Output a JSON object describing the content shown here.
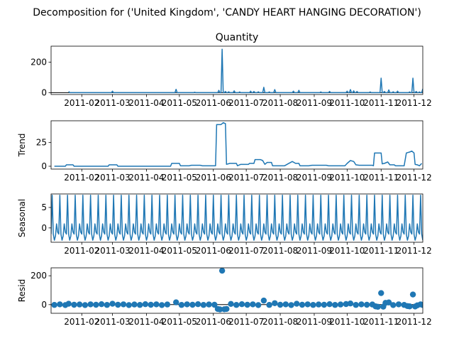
{
  "figure": {
    "suptitle": "Decomposition for ('United Kingdom', 'CANDY HEART HANGING DECORATION')"
  },
  "colors": {
    "line": "#1f77b4",
    "axis": "#000000",
    "background": "#ffffff"
  },
  "chart_data": [
    {
      "type": "line",
      "title": "Quantity",
      "ylabel": "",
      "xlim": [
        "2011-01-04",
        "2011-12-09"
      ],
      "ylim": [
        -12,
        305
      ],
      "yticks": [
        0,
        200
      ],
      "xticks": [
        "2011-02",
        "2011-03",
        "2011-04",
        "2011-05",
        "2011-06",
        "2011-07",
        "2011-08",
        "2011-09",
        "2011-10",
        "2011-11",
        "2011-12"
      ],
      "baseline": 0,
      "series": [
        {
          "points": [
            [
              "2011-01-20",
              8
            ],
            [
              "2011-03-01",
              10
            ],
            [
              "2011-04-28",
              22
            ],
            [
              "2011-05-15",
              3
            ],
            [
              "2011-06-06",
              15
            ],
            [
              "2011-06-09",
              285
            ],
            [
              "2011-06-12",
              8
            ],
            [
              "2011-06-15",
              6
            ],
            [
              "2011-06-20",
              12
            ],
            [
              "2011-06-25",
              5
            ],
            [
              "2011-07-05",
              10
            ],
            [
              "2011-07-08",
              8
            ],
            [
              "2011-07-12",
              6
            ],
            [
              "2011-07-17",
              35
            ],
            [
              "2011-07-22",
              5
            ],
            [
              "2011-07-27",
              20
            ],
            [
              "2011-08-13",
              10
            ],
            [
              "2011-08-18",
              15
            ],
            [
              "2011-09-07",
              5
            ],
            [
              "2011-09-15",
              8
            ],
            [
              "2011-10-01",
              10
            ],
            [
              "2011-10-04",
              20
            ],
            [
              "2011-10-07",
              12
            ],
            [
              "2011-10-10",
              8
            ],
            [
              "2011-10-22",
              5
            ],
            [
              "2011-11-01",
              95
            ],
            [
              "2011-11-04",
              8
            ],
            [
              "2011-11-08",
              18
            ],
            [
              "2011-11-12",
              6
            ],
            [
              "2011-11-16",
              10
            ],
            [
              "2011-11-27",
              5
            ],
            [
              "2011-11-30",
              95
            ],
            [
              "2011-12-03",
              8
            ],
            [
              "2011-12-06",
              5
            ],
            [
              "2011-12-09",
              25
            ]
          ]
        }
      ]
    },
    {
      "type": "line",
      "title": "",
      "ylabel": "Trend",
      "xlim": [
        "2011-01-04",
        "2011-12-09"
      ],
      "ylim": [
        -3,
        48
      ],
      "yticks": [
        0,
        25
      ],
      "xticks": [
        "2011-02",
        "2011-03",
        "2011-04",
        "2011-05",
        "2011-06",
        "2011-07",
        "2011-08",
        "2011-09",
        "2011-10",
        "2011-11",
        "2011-12"
      ],
      "series": [
        {
          "points": [
            [
              "2011-01-07",
              0
            ],
            [
              "2011-01-17",
              0
            ],
            [
              "2011-01-18",
              1.5
            ],
            [
              "2011-01-24",
              1.5
            ],
            [
              "2011-01-25",
              0
            ],
            [
              "2011-02-25",
              0
            ],
            [
              "2011-02-26",
              1.5
            ],
            [
              "2011-03-05",
              1.5
            ],
            [
              "2011-03-06",
              0
            ],
            [
              "2011-04-23",
              0
            ],
            [
              "2011-04-24",
              3
            ],
            [
              "2011-05-01",
              3
            ],
            [
              "2011-05-02",
              0.5
            ],
            [
              "2011-05-10",
              0.5
            ],
            [
              "2011-05-12",
              1
            ],
            [
              "2011-05-20",
              1
            ],
            [
              "2011-05-22",
              0.5
            ],
            [
              "2011-06-03",
              0.5
            ],
            [
              "2011-06-04",
              44
            ],
            [
              "2011-06-08",
              44
            ],
            [
              "2011-06-10",
              46
            ],
            [
              "2011-06-12",
              45
            ],
            [
              "2011-06-13",
              2
            ],
            [
              "2011-06-16",
              3
            ],
            [
              "2011-06-22",
              3
            ],
            [
              "2011-06-23",
              0.5
            ],
            [
              "2011-06-26",
              2
            ],
            [
              "2011-07-03",
              2
            ],
            [
              "2011-07-04",
              3
            ],
            [
              "2011-07-08",
              3
            ],
            [
              "2011-07-09",
              7
            ],
            [
              "2011-07-14",
              7
            ],
            [
              "2011-07-16",
              6
            ],
            [
              "2011-07-18",
              2
            ],
            [
              "2011-07-20",
              4
            ],
            [
              "2011-07-24",
              4
            ],
            [
              "2011-07-25",
              0.5
            ],
            [
              "2011-08-05",
              0.5
            ],
            [
              "2011-08-08",
              2.5
            ],
            [
              "2011-08-12",
              5
            ],
            [
              "2011-08-15",
              3
            ],
            [
              "2011-08-18",
              3
            ],
            [
              "2011-08-19",
              0.5
            ],
            [
              "2011-08-27",
              0.5
            ],
            [
              "2011-08-30",
              1
            ],
            [
              "2011-09-12",
              1
            ],
            [
              "2011-09-14",
              0.5
            ],
            [
              "2011-09-29",
              0.5
            ],
            [
              "2011-10-01",
              3
            ],
            [
              "2011-10-04",
              6
            ],
            [
              "2011-10-07",
              5
            ],
            [
              "2011-10-09",
              1.5
            ],
            [
              "2011-10-12",
              1
            ],
            [
              "2011-10-24",
              1
            ],
            [
              "2011-10-25",
              0.5
            ],
            [
              "2011-10-26",
              14
            ],
            [
              "2011-11-01",
              14
            ],
            [
              "2011-11-02",
              2.5
            ],
            [
              "2011-11-04",
              3
            ],
            [
              "2011-11-07",
              4.5
            ],
            [
              "2011-11-09",
              1.5
            ],
            [
              "2011-11-13",
              1.5
            ],
            [
              "2011-11-14",
              0.5
            ],
            [
              "2011-11-22",
              0.5
            ],
            [
              "2011-11-24",
              14
            ],
            [
              "2011-11-27",
              15
            ],
            [
              "2011-11-29",
              16
            ],
            [
              "2011-12-01",
              14
            ],
            [
              "2011-12-02",
              2
            ],
            [
              "2011-12-04",
              1.5
            ],
            [
              "2011-12-06",
              0.5
            ],
            [
              "2011-12-08",
              3
            ]
          ]
        }
      ]
    },
    {
      "type": "line",
      "title": "",
      "ylabel": "Seasonal",
      "xlim": [
        "2011-01-04",
        "2011-12-09"
      ],
      "ylim": [
        -3.5,
        8.3
      ],
      "yticks": [
        0,
        5
      ],
      "xticks": [
        "2011-02",
        "2011-03",
        "2011-04",
        "2011-05",
        "2011-06",
        "2011-07",
        "2011-08",
        "2011-09",
        "2011-10",
        "2011-11",
        "2011-12"
      ],
      "seasonal_period_days": 7,
      "seasonal_cycle": [
        -1.5,
        8,
        -1.5,
        -3,
        -2,
        1,
        -1
      ],
      "start": "2011-01-04",
      "end": "2011-12-09"
    },
    {
      "type": "scatter",
      "title": "",
      "ylabel": "Resid",
      "xlim": [
        "2011-01-04",
        "2011-12-09"
      ],
      "ylim": [
        -60,
        255
      ],
      "yticks": [
        0,
        200
      ],
      "xticks": [
        "2011-02",
        "2011-03",
        "2011-04",
        "2011-05",
        "2011-06",
        "2011-07",
        "2011-08",
        "2011-09",
        "2011-10",
        "2011-11",
        "2011-12"
      ],
      "baseline": 0,
      "points": [
        [
          "2011-01-07",
          -2
        ],
        [
          "2011-01-12",
          2
        ],
        [
          "2011-01-17",
          -3
        ],
        [
          "2011-01-20",
          6
        ],
        [
          "2011-01-25",
          -1
        ],
        [
          "2011-01-30",
          1
        ],
        [
          "2011-02-04",
          -3
        ],
        [
          "2011-02-09",
          2
        ],
        [
          "2011-02-14",
          -1
        ],
        [
          "2011-02-19",
          3
        ],
        [
          "2011-02-24",
          -2
        ],
        [
          "2011-03-01",
          6
        ],
        [
          "2011-03-06",
          -1
        ],
        [
          "2011-03-11",
          2
        ],
        [
          "2011-03-16",
          -3
        ],
        [
          "2011-03-21",
          1
        ],
        [
          "2011-03-26",
          -2
        ],
        [
          "2011-03-31",
          3
        ],
        [
          "2011-04-05",
          -1
        ],
        [
          "2011-04-10",
          2
        ],
        [
          "2011-04-15",
          -3
        ],
        [
          "2011-04-20",
          1
        ],
        [
          "2011-04-28",
          16
        ],
        [
          "2011-05-03",
          -2
        ],
        [
          "2011-05-08",
          2
        ],
        [
          "2011-05-13",
          -1
        ],
        [
          "2011-05-18",
          3
        ],
        [
          "2011-05-23",
          -2
        ],
        [
          "2011-05-28",
          1
        ],
        [
          "2011-06-02",
          -1
        ],
        [
          "2011-06-05",
          -30
        ],
        [
          "2011-06-07",
          -33
        ],
        [
          "2011-06-09",
          235
        ],
        [
          "2011-06-11",
          -32
        ],
        [
          "2011-06-13",
          -30
        ],
        [
          "2011-06-17",
          5
        ],
        [
          "2011-06-22",
          -2
        ],
        [
          "2011-06-27",
          3
        ],
        [
          "2011-07-02",
          -1
        ],
        [
          "2011-07-07",
          2
        ],
        [
          "2011-07-12",
          -3
        ],
        [
          "2011-07-17",
          28
        ],
        [
          "2011-07-22",
          -2
        ],
        [
          "2011-07-27",
          10
        ],
        [
          "2011-08-01",
          -1
        ],
        [
          "2011-08-06",
          2
        ],
        [
          "2011-08-11",
          -3
        ],
        [
          "2011-08-16",
          6
        ],
        [
          "2011-08-21",
          -1
        ],
        [
          "2011-08-26",
          2
        ],
        [
          "2011-08-31",
          -2
        ],
        [
          "2011-09-05",
          1
        ],
        [
          "2011-09-10",
          -1
        ],
        [
          "2011-09-15",
          3
        ],
        [
          "2011-09-20",
          -2
        ],
        [
          "2011-09-25",
          1
        ],
        [
          "2011-09-30",
          4
        ],
        [
          "2011-10-04",
          8
        ],
        [
          "2011-10-09",
          -2
        ],
        [
          "2011-10-14",
          2
        ],
        [
          "2011-10-19",
          -1
        ],
        [
          "2011-10-24",
          1
        ],
        [
          "2011-10-27",
          -12
        ],
        [
          "2011-10-29",
          -15
        ],
        [
          "2011-11-01",
          80
        ],
        [
          "2011-11-03",
          -14
        ],
        [
          "2011-11-05",
          12
        ],
        [
          "2011-11-08",
          15
        ],
        [
          "2011-11-12",
          -3
        ],
        [
          "2011-11-17",
          2
        ],
        [
          "2011-11-22",
          -2
        ],
        [
          "2011-11-25",
          -10
        ],
        [
          "2011-11-27",
          -12
        ],
        [
          "2011-11-30",
          70
        ],
        [
          "2011-12-02",
          -13
        ],
        [
          "2011-12-04",
          -5
        ],
        [
          "2011-12-07",
          2
        ],
        [
          "2011-12-09",
          -3
        ]
      ]
    }
  ]
}
